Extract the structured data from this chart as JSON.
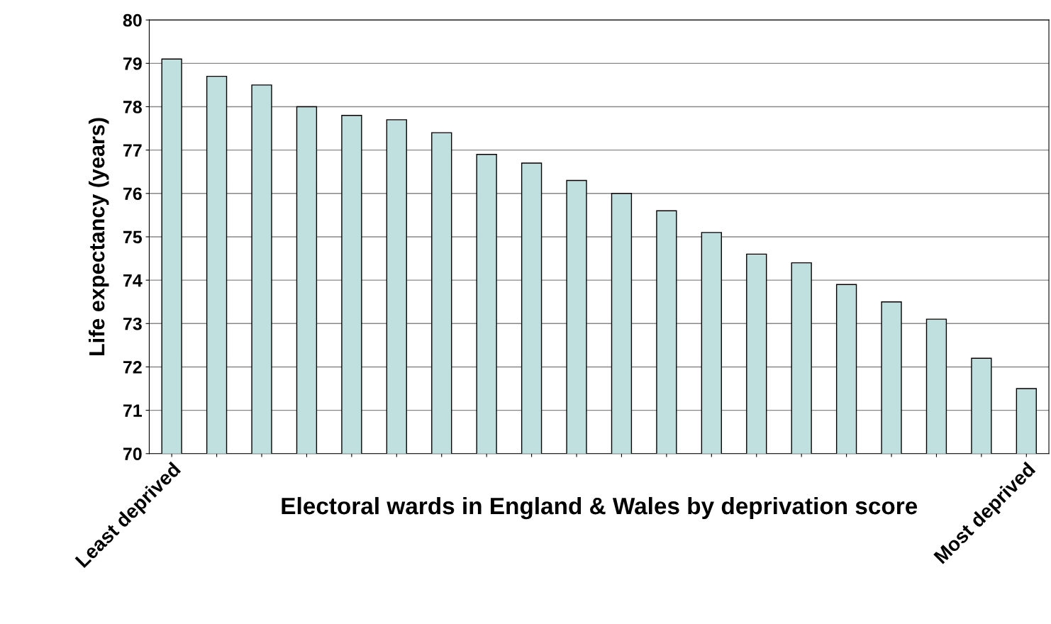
{
  "chart_data": {
    "type": "bar",
    "ylabel": "Life expectancy (years)",
    "xlabel": "Electoral wards in England & Wales by deprivation score",
    "categories": [
      "Least deprived",
      null,
      null,
      null,
      null,
      null,
      null,
      null,
      null,
      null,
      null,
      null,
      null,
      null,
      null,
      null,
      null,
      null,
      null,
      "Most deprived"
    ],
    "values": [
      79.1,
      78.7,
      78.5,
      78.0,
      77.8,
      77.7,
      77.4,
      76.9,
      76.7,
      76.3,
      76.0,
      75.6,
      75.1,
      74.6,
      74.4,
      73.9,
      73.5,
      73.1,
      72.2,
      71.5
    ],
    "color": "#c0e0e0",
    "ylim": [
      70,
      80
    ],
    "yticks": [
      70,
      71,
      72,
      73,
      74,
      75,
      76,
      77,
      78,
      79,
      80
    ],
    "grid": "y"
  }
}
